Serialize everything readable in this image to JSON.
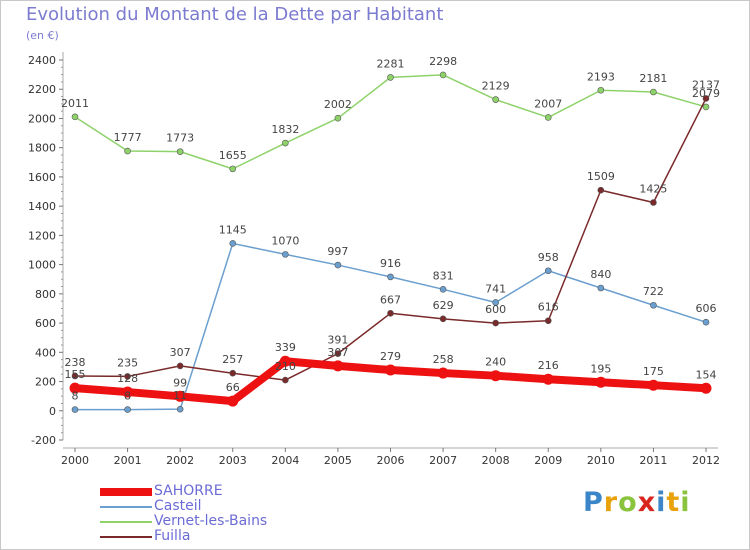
{
  "header": {
    "title": "Evolution du Montant de la Dette par Habitant",
    "unit": "(en €)"
  },
  "logo": {
    "text": "Proxiti",
    "letters": [
      {
        "ch": "P",
        "color": "#3a86c8"
      },
      {
        "ch": "r",
        "color": "#e8a20c"
      },
      {
        "ch": "o",
        "color": "#8ac43f"
      },
      {
        "ch": "x",
        "color": "#d8261c"
      },
      {
        "ch": "i",
        "color": "#3a86c8"
      },
      {
        "ch": "t",
        "color": "#e8a20c"
      },
      {
        "ch": "i",
        "color": "#8ac43f"
      }
    ]
  },
  "chart_data": {
    "type": "line",
    "x": [
      "2000",
      "2001",
      "2002",
      "2003",
      "2004",
      "2005",
      "2006",
      "2007",
      "2008",
      "2009",
      "2010",
      "2011",
      "2012"
    ],
    "ylim": [
      -200,
      2400
    ],
    "yticks": [
      "-200",
      "0",
      "200",
      "400",
      "600",
      "800",
      "1000",
      "1200",
      "1400",
      "1600",
      "1800",
      "2000",
      "2200",
      "2400"
    ],
    "grid": false,
    "legend_position": "bottom-left",
    "series": [
      {
        "name": "Casteil",
        "color": "#6a9fcf",
        "values": [
          8,
          8,
          11,
          1145,
          1070,
          997,
          916,
          831,
          741,
          958,
          840,
          722,
          606
        ],
        "labels": [
          "8",
          "8",
          "11",
          "1145",
          "1070",
          "997",
          "916",
          "831",
          "741",
          "958",
          "840",
          "722",
          "606"
        ]
      },
      {
        "name": "Vernet-les-Bains",
        "color": "#8ed26a",
        "values": [
          2011,
          1777,
          1773,
          1655,
          1832,
          2002,
          2281,
          2298,
          2129,
          2007,
          2193,
          2181,
          2079
        ],
        "labels": [
          "2011",
          "1777",
          "1773",
          "1655",
          "1832",
          "2002",
          "2281",
          "2298",
          "2129",
          "2007",
          "2193",
          "2181",
          "2079"
        ]
      },
      {
        "name": "Fuilla",
        "color": "#7a2a2a",
        "values": [
          238,
          235,
          307,
          257,
          210,
          391,
          667,
          629,
          600,
          616,
          1509,
          1425,
          2137
        ],
        "labels": [
          "238",
          "235",
          "307",
          "257",
          "210",
          "391",
          "667",
          "629",
          "600",
          "616",
          "1509",
          "1425",
          "2137"
        ]
      },
      {
        "name": "SAHORRE",
        "color": "#ee1111",
        "values": [
          155,
          128,
          99,
          66,
          339,
          307,
          279,
          258,
          240,
          216,
          195,
          175,
          154
        ],
        "labels": [
          "155",
          "128",
          "99",
          "66",
          "339",
          "307",
          "279",
          "258",
          "240",
          "216",
          "195",
          "175",
          "154"
        ]
      }
    ]
  }
}
